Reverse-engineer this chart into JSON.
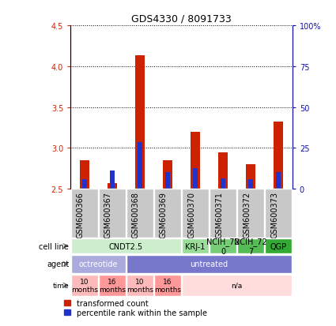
{
  "title": "GDS4330 / 8091733",
  "samples": [
    "GSM600366",
    "GSM600367",
    "GSM600368",
    "GSM600369",
    "GSM600370",
    "GSM600371",
    "GSM600372",
    "GSM600373"
  ],
  "red_values": [
    2.85,
    2.57,
    4.13,
    2.85,
    3.2,
    2.95,
    2.8,
    3.32
  ],
  "blue_values": [
    2.62,
    2.72,
    3.07,
    2.7,
    2.75,
    2.63,
    2.62,
    2.7
  ],
  "ylim": [
    2.5,
    4.5
  ],
  "yticks_left": [
    2.5,
    3.0,
    3.5,
    4.0,
    4.5
  ],
  "yticks_right_vals": [
    0,
    25,
    50,
    75,
    100
  ],
  "yticks_right_labels": [
    "0",
    "25",
    "50",
    "75",
    "100%"
  ],
  "bar_width": 0.35,
  "bar_color_red": "#cc2200",
  "bar_color_blue": "#2233cc",
  "cell_line_groups": [
    {
      "label": "CNDT2.5",
      "cols": [
        0,
        1,
        2,
        3
      ],
      "color": "#cceecc"
    },
    {
      "label": "KRJ-1",
      "cols": [
        4
      ],
      "color": "#99dd99"
    },
    {
      "label": "NCIH_72\n0",
      "cols": [
        5
      ],
      "color": "#77cc77"
    },
    {
      "label": "NCIH_72\n7",
      "cols": [
        6
      ],
      "color": "#55bb55"
    },
    {
      "label": "QGP",
      "cols": [
        7
      ],
      "color": "#33aa33"
    }
  ],
  "agent_groups": [
    {
      "label": "octreotide",
      "cols": [
        0,
        1
      ],
      "color": "#aaaadd"
    },
    {
      "label": "untreated",
      "cols": [
        2,
        3,
        4,
        5,
        6,
        7
      ],
      "color": "#7777cc"
    }
  ],
  "time_groups": [
    {
      "label": "10\nmonths",
      "cols": [
        0
      ],
      "color": "#ffbbbb"
    },
    {
      "label": "16\nmonths",
      "cols": [
        1
      ],
      "color": "#ff9999"
    },
    {
      "label": "10\nmonths",
      "cols": [
        2
      ],
      "color": "#ffbbbb"
    },
    {
      "label": "16\nmonths",
      "cols": [
        3
      ],
      "color": "#ff9999"
    },
    {
      "label": "n/a",
      "cols": [
        4,
        5,
        6,
        7
      ],
      "color": "#ffdddd"
    }
  ],
  "label_fontsize": 7,
  "tick_fontsize": 7,
  "header_bg": "#c8c8c8",
  "legend_red_label": "transformed count",
  "legend_blue_label": "percentile rank within the sample"
}
